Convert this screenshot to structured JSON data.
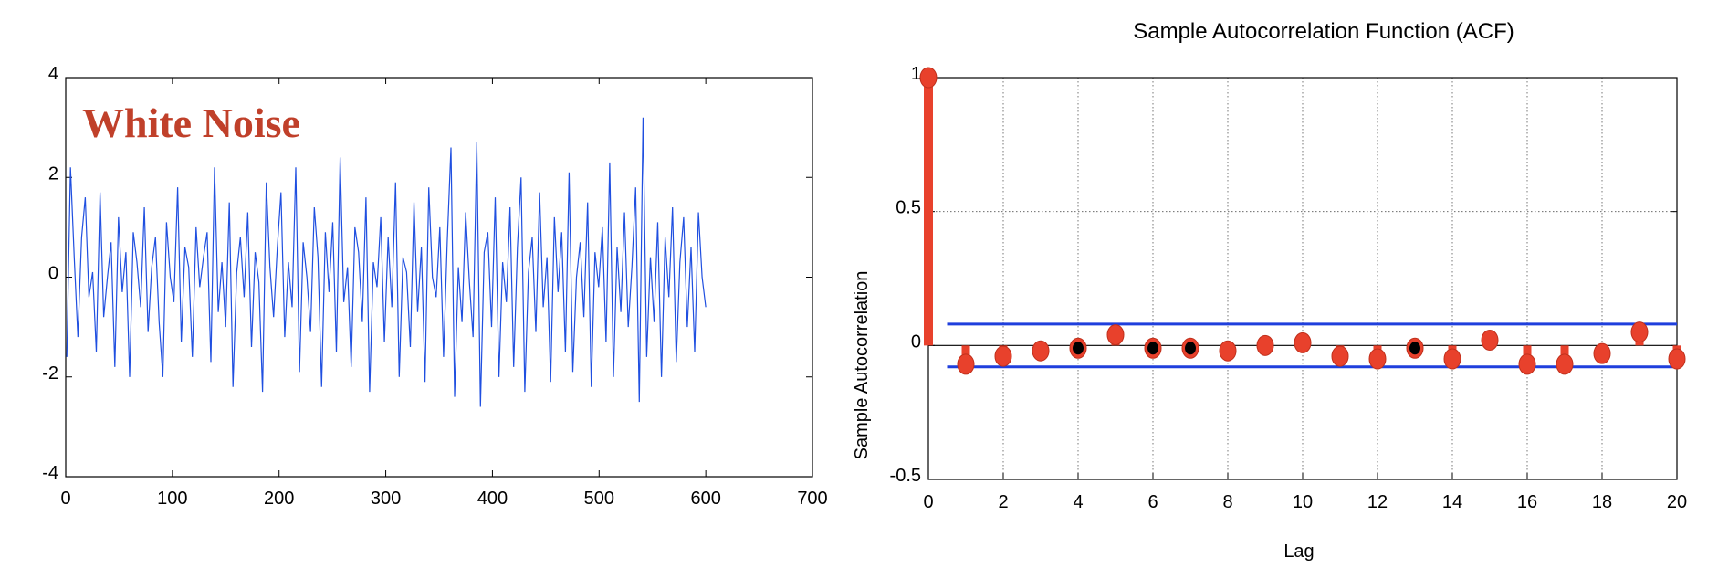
{
  "colors": {
    "noise_line": "#1f4fe0",
    "stem": "#e8412c",
    "stem_edge": "#c0301c",
    "bounds": "#1f3fdd",
    "label_red": "#c0402a",
    "black_marker": "#000000"
  },
  "chart_data": [
    {
      "type": "line",
      "annotation": "White Noise",
      "xlim": [
        0,
        700
      ],
      "ylim": [
        -4,
        4
      ],
      "xticks": [
        "0",
        "100",
        "200",
        "300",
        "400",
        "500",
        "600",
        "700"
      ],
      "yticks": [
        "4",
        "2",
        "0",
        "-2",
        "-4"
      ],
      "grid": false,
      "series": [
        {
          "x_start": 1,
          "x_end": 600,
          "values": [
            -1.6,
            2.2,
            0.4,
            -1.2,
            0.8,
            1.6,
            -0.4,
            0.1,
            -1.5,
            1.7,
            -0.8,
            0.0,
            0.7,
            -1.8,
            1.2,
            -0.3,
            0.5,
            -2.0,
            0.9,
            0.3,
            -0.6,
            1.4,
            -1.1,
            0.2,
            0.8,
            -0.9,
            -2.0,
            1.1,
            0.0,
            -0.5,
            1.8,
            -1.3,
            0.6,
            0.2,
            -1.6,
            1.0,
            -0.2,
            0.4,
            0.9,
            -1.7,
            2.2,
            -0.7,
            0.3,
            -1.0,
            1.5,
            -2.2,
            0.1,
            0.8,
            -0.4,
            1.3,
            -1.4,
            0.5,
            -0.1,
            -2.3,
            1.9,
            0.2,
            -0.8,
            0.6,
            1.7,
            -1.2,
            0.3,
            -0.6,
            2.2,
            -1.9,
            0.7,
            0.0,
            -1.1,
            1.4,
            0.4,
            -2.2,
            0.9,
            -0.3,
            1.1,
            -1.5,
            2.4,
            -0.5,
            0.2,
            -1.8,
            1.0,
            0.5,
            -0.9,
            1.6,
            -2.3,
            0.3,
            -0.2,
            1.2,
            -1.3,
            0.8,
            -0.6,
            1.9,
            -2.0,
            0.4,
            0.1,
            -1.4,
            1.5,
            -0.7,
            0.6,
            -2.1,
            1.8,
            0.0,
            -0.4,
            1.0,
            -1.6,
            0.7,
            2.6,
            -2.4,
            0.2,
            -0.9,
            1.3,
            -0.1,
            -1.2,
            2.7,
            -2.6,
            0.5,
            0.9,
            -1.0,
            1.6,
            -2.0,
            0.3,
            -0.5,
            1.4,
            -1.8,
            0.6,
            2.0,
            -2.3,
            0.1,
            0.8,
            -1.1,
            1.7,
            -0.6,
            0.4,
            -2.1,
            1.2,
            -0.3,
            0.9,
            -1.5,
            2.1,
            -1.9,
            0.0,
            0.7,
            -0.8,
            1.5,
            -2.2,
            0.5,
            -0.2,
            1.0,
            -1.3,
            2.3,
            -2.0,
            0.6,
            -0.7,
            1.3,
            -1.0,
            0.2,
            1.8,
            -2.5,
            3.2,
            -1.6,
            0.4,
            -0.9,
            1.1,
            -2.0,
            0.8,
            -0.4,
            1.4,
            -1.7,
            0.3,
            1.2,
            -1.0,
            0.6,
            -1.5,
            1.3,
            0.0,
            -0.6
          ]
        }
      ]
    },
    {
      "type": "stem",
      "title": "Sample Autocorrelation Function (ACF)",
      "xlabel": "Lag",
      "ylabel": "Sample Autocorrelation",
      "xlim": [
        0,
        20
      ],
      "ylim": [
        -0.5,
        1
      ],
      "xticks": [
        "0",
        "2",
        "4",
        "6",
        "8",
        "10",
        "12",
        "14",
        "16",
        "18",
        "20"
      ],
      "yticks": [
        "1",
        "0.5",
        "0",
        "-0.5"
      ],
      "grid": true,
      "lags": [
        0,
        1,
        2,
        3,
        4,
        5,
        6,
        7,
        8,
        9,
        10,
        11,
        12,
        13,
        14,
        15,
        16,
        17,
        18,
        19,
        20
      ],
      "values": [
        1.0,
        -0.07,
        -0.04,
        -0.02,
        -0.01,
        0.04,
        -0.01,
        -0.01,
        -0.02,
        0.0,
        0.01,
        -0.04,
        -0.05,
        -0.01,
        -0.05,
        0.02,
        -0.07,
        -0.07,
        -0.03,
        0.05,
        -0.05
      ],
      "black_marker_lags": [
        4,
        6,
        7,
        13
      ],
      "confidence_bounds": [
        0.08,
        -0.08
      ]
    }
  ]
}
